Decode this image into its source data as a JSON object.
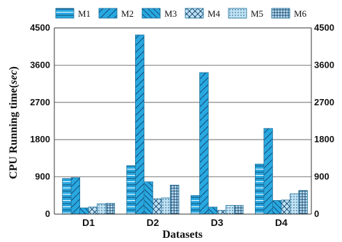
{
  "chart_data": {
    "type": "bar",
    "categories": [
      "D1",
      "D2",
      "D3",
      "D4"
    ],
    "series": [
      {
        "name": "M1",
        "values": [
          860,
          1170,
          450,
          1210
        ],
        "pattern": "horizontal"
      },
      {
        "name": "M2",
        "values": [
          880,
          4330,
          3420,
          2070
        ],
        "pattern": "forward-diagonal"
      },
      {
        "name": "M3",
        "values": [
          150,
          780,
          170,
          330
        ],
        "pattern": "backward-diagonal"
      },
      {
        "name": "M4",
        "values": [
          170,
          370,
          90,
          340
        ],
        "pattern": "crosshatch-diagonal"
      },
      {
        "name": "M5",
        "values": [
          250,
          390,
          210,
          490
        ],
        "pattern": "dots"
      },
      {
        "name": "M6",
        "values": [
          260,
          700,
          210,
          570
        ],
        "pattern": "grid"
      }
    ],
    "xlabel": "Datasets",
    "ylabel": "CPU Running time(sec)",
    "ylabel_main": "CPU Running time(",
    "ylabel_italic": "sec",
    "ylabel_close": ")",
    "ylim": [
      0,
      4500
    ],
    "yticks": [
      "0",
      "900",
      "1800",
      "2700",
      "3600",
      "4500"
    ],
    "grid": true,
    "legend_position": "top",
    "colors": {
      "bar_fill": "#29a8e0",
      "bar_edge": "#1d6f9a",
      "pattern": "#0d3d66",
      "light_fill": "#bfe3f5",
      "grid": "#555555"
    }
  }
}
